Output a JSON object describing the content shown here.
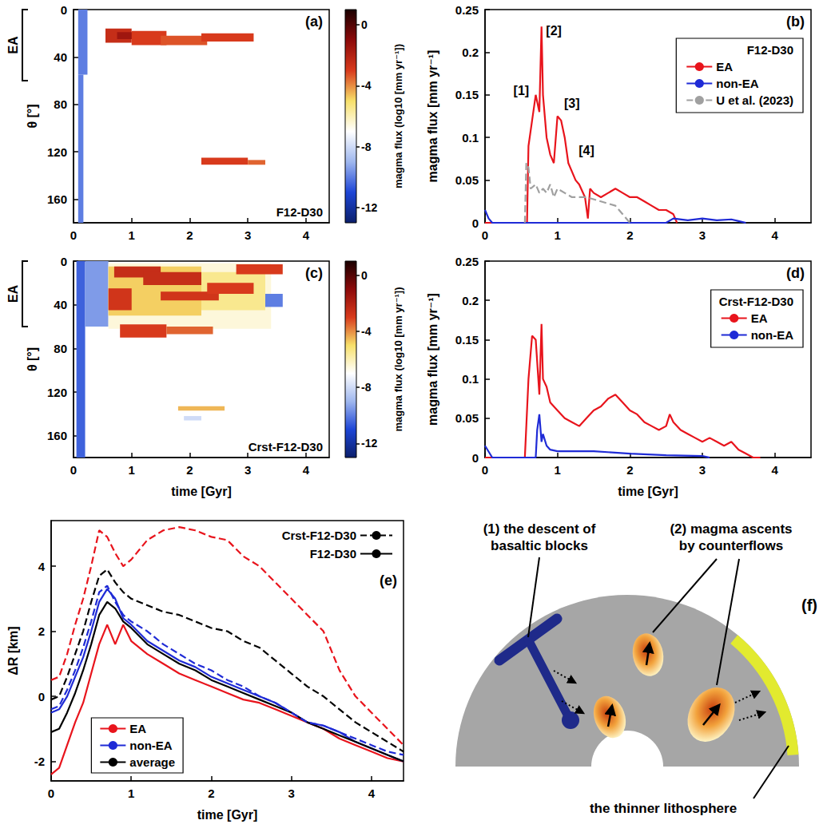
{
  "chart_data": [
    {
      "type": "heatmap",
      "title": "(a)",
      "subtitle": "F12-D30",
      "y_label": "θ [°]",
      "xlim": [
        0,
        4.4
      ],
      "xticks": [
        0,
        1,
        2,
        3,
        4
      ],
      "ylim": [
        180,
        0
      ],
      "yticks": [
        0,
        40,
        80,
        120,
        160
      ],
      "grid": false,
      "bracket": {
        "text": "EA",
        "ylim": [
          0,
          60
        ]
      },
      "cells": [
        [
          0.08,
          0.24,
          0,
          55,
          -10
        ],
        [
          0.08,
          0.17,
          55,
          180,
          -10
        ],
        [
          0.55,
          1.0,
          16,
          28,
          -2.5
        ],
        [
          0.75,
          1.3,
          19,
          25,
          -1.5
        ],
        [
          1.0,
          1.6,
          18,
          30,
          -3
        ],
        [
          1.5,
          2.3,
          22,
          30,
          -3.3
        ],
        [
          2.2,
          3.1,
          20,
          27,
          -3
        ],
        [
          2.2,
          3.0,
          125,
          131,
          -3
        ],
        [
          3.0,
          3.3,
          127,
          131,
          -3.5
        ]
      ],
      "colorbar": {
        "label": "magma flux (log10 [mm yr⁻¹])",
        "range": [
          -13,
          1
        ],
        "ticks": [
          0,
          -4,
          -8,
          -12
        ],
        "colors": [
          "#0b1f6b",
          "#1d45d6",
          "#9fb7ee",
          "#ffffff",
          "#f7e06a",
          "#d83a1c",
          "#8c0a0a",
          "#1a0000"
        ]
      }
    },
    {
      "type": "line",
      "title": "(b)",
      "subtitle": "F12-D30",
      "y_label": "magma flux [mm yr⁻¹]",
      "xlim": [
        0,
        4.5
      ],
      "xticks": [
        0,
        1,
        2,
        3,
        4
      ],
      "ylim": [
        0,
        0.25
      ],
      "yticks": [
        0,
        0.05,
        0.1,
        0.15,
        0.2,
        0.25
      ],
      "grid": false,
      "legend": "top-right",
      "annotations": [
        {
          "text": "[1]",
          "x": 0.5,
          "y": 0.155
        },
        {
          "text": "[2]",
          "x": 0.95,
          "y": 0.225
        },
        {
          "text": "[3]",
          "x": 1.2,
          "y": 0.14
        },
        {
          "text": "[4]",
          "x": 1.4,
          "y": 0.085
        }
      ],
      "series": [
        {
          "name": "EA",
          "color": "#e8141c",
          "line_style": "solid",
          "x": [
            0,
            0.58,
            0.6,
            0.65,
            0.7,
            0.75,
            0.78,
            0.8,
            0.85,
            0.9,
            0.95,
            1.0,
            1.05,
            1.1,
            1.15,
            1.2,
            1.25,
            1.3,
            1.38,
            1.42,
            1.45,
            1.5,
            1.6,
            1.7,
            1.8,
            1.9,
            2.0,
            2.1,
            2.2,
            2.3,
            2.4,
            2.5,
            2.6,
            2.65
          ],
          "values": [
            0,
            0,
            0.09,
            0.12,
            0.15,
            0.13,
            0.23,
            0.15,
            0.1,
            0.08,
            0.07,
            0.125,
            0.12,
            0.1,
            0.07,
            0.06,
            0.05,
            0.045,
            0.03,
            0.005,
            0.04,
            0.035,
            0.03,
            0.035,
            0.04,
            0.035,
            0.03,
            0.03,
            0.025,
            0.02,
            0.015,
            0.015,
            0.01,
            0
          ]
        },
        {
          "name": "non-EA",
          "color": "#1f2bd6",
          "line_style": "solid",
          "x": [
            0,
            0.05,
            0.1,
            2.5,
            2.6,
            2.8,
            3.0,
            3.2,
            3.4,
            3.5,
            3.6
          ],
          "values": [
            0.015,
            0.005,
            0,
            0,
            0.005,
            0.003,
            0.005,
            0.003,
            0.004,
            0.002,
            0
          ]
        },
        {
          "name": "U et al. (2023)",
          "color": "#a0a0a0",
          "line_style": "dashed",
          "x": [
            0.55,
            0.57,
            0.6,
            0.63,
            0.7,
            0.75,
            0.8,
            0.85,
            0.9,
            0.95,
            1.0,
            1.1,
            1.2,
            1.4,
            1.6,
            1.8,
            1.9,
            2.0
          ],
          "values": [
            0,
            0.07,
            0.065,
            0.04,
            0.045,
            0.035,
            0.04,
            0.035,
            0.045,
            0.03,
            0.04,
            0.035,
            0.03,
            0.03,
            0.025,
            0.02,
            0.01,
            0
          ]
        }
      ]
    },
    {
      "type": "heatmap",
      "title": "(c)",
      "subtitle": "Crst-F12-D30",
      "x_label": "time [Gyr]",
      "y_label": "θ [°]",
      "xlim": [
        0,
        4.4
      ],
      "xticks": [
        0,
        1,
        2,
        3,
        4
      ],
      "ylim": [
        180,
        0
      ],
      "yticks": [
        0,
        40,
        80,
        120,
        160
      ],
      "grid": false,
      "bracket": {
        "text": "EA",
        "ylim": [
          0,
          60
        ]
      },
      "cells": [
        [
          0.05,
          0.2,
          0,
          180,
          -10.5
        ],
        [
          0.2,
          0.6,
          0,
          60,
          -9.5
        ],
        [
          0.6,
          3.4,
          2,
          62,
          -6.5
        ],
        [
          0.6,
          2.2,
          5,
          50,
          -4.8
        ],
        [
          2.2,
          3.3,
          10,
          45,
          -5.5
        ],
        [
          0.7,
          1.5,
          5,
          15,
          -2.5
        ],
        [
          1.2,
          2.2,
          10,
          22,
          -2.5
        ],
        [
          0.6,
          1.0,
          25,
          45,
          -2.8
        ],
        [
          1.5,
          2.5,
          28,
          36,
          -2.8
        ],
        [
          2.3,
          3.1,
          20,
          30,
          -3
        ],
        [
          2.8,
          3.6,
          3,
          12,
          -3
        ],
        [
          0.8,
          1.6,
          58,
          70,
          -3
        ],
        [
          1.6,
          2.4,
          60,
          67,
          -3.5
        ],
        [
          3.3,
          3.6,
          30,
          42,
          -10
        ],
        [
          1.8,
          2.6,
          133,
          137,
          -4.5
        ],
        [
          1.9,
          2.2,
          142,
          146,
          -8
        ]
      ],
      "colorbar": {
        "label": "magma flux (log10 [mm yr⁻¹])",
        "range": [
          -13,
          1
        ],
        "ticks": [
          0,
          -4,
          -8,
          -12
        ],
        "colors": [
          "#0b1f6b",
          "#1d45d6",
          "#9fb7ee",
          "#ffffff",
          "#f7e06a",
          "#d83a1c",
          "#8c0a0a",
          "#1a0000"
        ]
      }
    },
    {
      "type": "line",
      "title": "(d)",
      "subtitle": "Crst-F12-D30",
      "x_label": "time [Gyr]",
      "y_label": "magma flux [mm yr⁻¹]",
      "xlim": [
        0,
        4.5
      ],
      "xticks": [
        0,
        1,
        2,
        3,
        4
      ],
      "ylim": [
        0,
        0.25
      ],
      "yticks": [
        0,
        0.05,
        0.1,
        0.15,
        0.2,
        0.25
      ],
      "grid": false,
      "legend": "top-right",
      "series": [
        {
          "name": "EA",
          "color": "#e8141c",
          "line_style": "solid",
          "x": [
            0,
            0.55,
            0.6,
            0.65,
            0.7,
            0.75,
            0.78,
            0.8,
            0.85,
            0.9,
            1.0,
            1.1,
            1.2,
            1.3,
            1.4,
            1.5,
            1.6,
            1.7,
            1.8,
            1.9,
            2.0,
            2.1,
            2.2,
            2.3,
            2.4,
            2.5,
            2.55,
            2.6,
            2.7,
            2.8,
            2.9,
            3.0,
            3.1,
            3.2,
            3.3,
            3.4,
            3.5,
            3.6,
            3.7,
            3.8
          ],
          "values": [
            0,
            0,
            0.1,
            0.155,
            0.15,
            0.08,
            0.17,
            0.1,
            0.09,
            0.07,
            0.06,
            0.05,
            0.045,
            0.04,
            0.05,
            0.06,
            0.065,
            0.075,
            0.08,
            0.07,
            0.06,
            0.055,
            0.045,
            0.04,
            0.035,
            0.04,
            0.055,
            0.045,
            0.035,
            0.03,
            0.025,
            0.02,
            0.025,
            0.02,
            0.015,
            0.02,
            0.01,
            0.005,
            0,
            0
          ]
        },
        {
          "name": "non-EA",
          "color": "#1f2bd6",
          "line_style": "solid",
          "x": [
            0,
            0.1,
            0.7,
            0.72,
            0.75,
            0.78,
            0.8,
            0.85,
            0.9,
            1.0,
            1.5,
            2.0,
            2.5,
            3.0,
            3.1
          ],
          "values": [
            0.015,
            0,
            0,
            0.035,
            0.055,
            0.02,
            0.03,
            0.015,
            0.01,
            0.008,
            0.008,
            0.005,
            0.003,
            0.002,
            0
          ]
        }
      ]
    },
    {
      "type": "line",
      "title": "(e)",
      "x_label": "time [Gyr]",
      "y_label": "ΔR [km]",
      "xlim": [
        0,
        4.4
      ],
      "xticks": [
        0,
        1,
        2,
        3,
        4
      ],
      "ylim": [
        -2.6,
        5.4
      ],
      "yticks": [
        -2,
        0,
        2,
        4
      ],
      "grid": false,
      "legend": "bottom-left",
      "line_style_legend": [
        {
          "name": "Crst-F12-D30",
          "line_style": "dashed",
          "color": "#000000"
        },
        {
          "name": "F12-D30",
          "line_style": "solid",
          "color": "#000000"
        }
      ],
      "x": [
        0,
        0.1,
        0.2,
        0.3,
        0.4,
        0.5,
        0.6,
        0.7,
        0.8,
        0.9,
        1.0,
        1.2,
        1.4,
        1.6,
        1.8,
        2.0,
        2.2,
        2.4,
        2.6,
        2.8,
        3.0,
        3.2,
        3.4,
        3.6,
        3.8,
        4.0,
        4.2,
        4.4
      ],
      "series": [
        {
          "name": "EA",
          "color": "#e8141c",
          "line_style": "solid",
          "values": [
            -2.4,
            -2.2,
            -1.5,
            -0.8,
            -0.2,
            0.7,
            1.6,
            2.2,
            1.6,
            2.2,
            1.7,
            1.3,
            1.0,
            0.7,
            0.5,
            0.3,
            0.1,
            -0.1,
            -0.2,
            -0.4,
            -0.6,
            -0.8,
            -1.0,
            -1.3,
            -1.5,
            -1.7,
            -1.9,
            -2.0
          ]
        },
        {
          "name": "non-EA",
          "color": "#1f2bd6",
          "line_style": "solid",
          "values": [
            -0.5,
            -0.4,
            0.0,
            0.6,
            1.2,
            2.0,
            2.9,
            3.3,
            3.0,
            2.4,
            2.2,
            1.7,
            1.4,
            1.1,
            0.9,
            0.6,
            0.4,
            0.2,
            0.0,
            -0.2,
            -0.5,
            -0.8,
            -0.9,
            -1.1,
            -1.4,
            -1.6,
            -1.8,
            -2.0
          ]
        },
        {
          "name": "average",
          "color": "#000000",
          "line_style": "solid",
          "values": [
            -1.1,
            -1.0,
            -0.5,
            0.1,
            0.8,
            1.6,
            2.5,
            2.9,
            2.7,
            2.3,
            2.1,
            1.6,
            1.3,
            1.0,
            0.8,
            0.5,
            0.3,
            0.1,
            -0.1,
            -0.3,
            -0.5,
            -0.8,
            -1.0,
            -1.2,
            -1.4,
            -1.6,
            -1.8,
            -2.0
          ]
        },
        {
          "name": "EA",
          "color": "#e8141c",
          "line_style": "dashed",
          "values": [
            0.5,
            0.6,
            1.3,
            2.2,
            3.0,
            4.0,
            5.1,
            4.9,
            4.4,
            4.0,
            4.2,
            4.8,
            5.1,
            5.2,
            5.1,
            4.9,
            4.8,
            4.3,
            4.0,
            3.5,
            3.0,
            2.5,
            2.0,
            0.8,
            0.0,
            -0.5,
            -1.0,
            -1.5
          ]
        },
        {
          "name": "non-EA",
          "color": "#1f2bd6",
          "line_style": "dashed",
          "values": [
            -0.4,
            -0.3,
            0.2,
            0.8,
            1.5,
            2.3,
            3.2,
            3.4,
            2.9,
            2.5,
            2.3,
            2.0,
            1.6,
            1.3,
            1.0,
            0.8,
            0.5,
            0.3,
            0.0,
            -0.2,
            -0.5,
            -0.8,
            -0.9,
            -1.1,
            -1.3,
            -1.5,
            -1.7,
            -1.8
          ]
        },
        {
          "name": "average",
          "color": "#000000",
          "line_style": "dashed",
          "values": [
            -0.1,
            0.0,
            0.6,
            1.3,
            2.0,
            2.9,
            3.7,
            3.9,
            3.5,
            3.2,
            3.0,
            2.8,
            2.6,
            2.5,
            2.3,
            2.1,
            2.0,
            1.7,
            1.5,
            1.1,
            0.7,
            0.3,
            0.0,
            -0.4,
            -0.8,
            -1.1,
            -1.4,
            -1.7
          ]
        }
      ]
    }
  ],
  "diagram": {
    "title": "(f)",
    "labels": {
      "descent": "(1) the descent of basaltic blocks",
      "ascent": "(2) magma ascents by counterflows",
      "lithosphere": "the thinner lithosphere"
    }
  }
}
